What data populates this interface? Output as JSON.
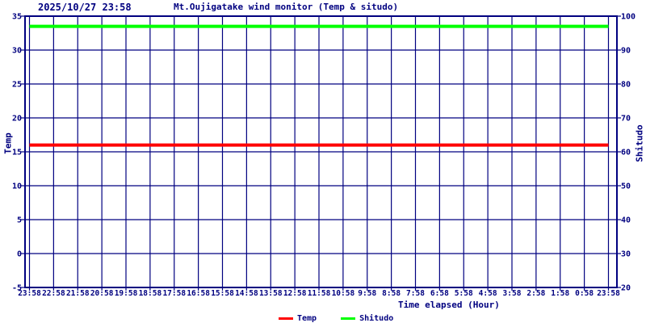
{
  "header": {
    "timestamp": "2025/10/27 23:58",
    "title": "Mt.Oujigatake wind monitor (Temp & situdo)"
  },
  "axes": {
    "left": {
      "title": "Temp"
    },
    "right": {
      "title": "Shitudo"
    },
    "x": {
      "title": "Time elapsed (Hour)"
    }
  },
  "legend": {
    "items": [
      {
        "label": "Temp",
        "color": "#ff0000"
      },
      {
        "label": "Shitudo",
        "color": "#00ff00"
      }
    ]
  },
  "chart_data": {
    "type": "line",
    "title": "Mt.Oujigatake wind monitor (Temp & situdo)",
    "timestamp": "2025/10/27 23:58",
    "xlabel": "Time elapsed (Hour)",
    "grid": true,
    "legend_position": "bottom-center",
    "x_tick_labels": [
      "23:58",
      "22:58",
      "21:58",
      "20:58",
      "19:58",
      "18:58",
      "17:58",
      "16:58",
      "15:58",
      "14:58",
      "13:58",
      "12:58",
      "11:58",
      "10:58",
      "9:58",
      "8:58",
      "7:58",
      "6:58",
      "5:58",
      "4:58",
      "3:58",
      "2:58",
      "1:58",
      "0:58",
      "23:58"
    ],
    "left_axis": {
      "title": "Temp",
      "min": -5,
      "max": 35,
      "tick_step": 5,
      "ticks": [
        35,
        30,
        25,
        20,
        15,
        10,
        5,
        0,
        -5
      ]
    },
    "right_axis": {
      "title": "Shitudo",
      "min": 20,
      "max": 100,
      "tick_step": 10,
      "ticks": [
        100,
        90,
        80,
        70,
        60,
        50,
        40,
        30,
        20
      ]
    },
    "series": [
      {
        "name": "Temp",
        "axis": "left",
        "color": "#ff0000",
        "values": [
          16,
          16,
          16,
          16,
          16,
          16,
          16,
          16,
          16,
          16,
          16,
          16,
          16,
          16,
          16,
          16,
          16,
          16,
          16,
          16,
          16,
          16,
          16,
          16,
          16
        ]
      },
      {
        "name": "Shitudo",
        "axis": "right",
        "color": "#00ff00",
        "values": [
          97,
          97,
          97,
          97,
          97,
          97,
          97,
          97,
          97,
          97,
          97,
          97,
          97,
          97,
          97,
          97,
          97,
          97,
          97,
          97,
          97,
          97,
          97,
          97,
          97
        ]
      }
    ],
    "colors": {
      "frame": "#000080",
      "grid": "#000080",
      "background": "#ffffff"
    }
  }
}
